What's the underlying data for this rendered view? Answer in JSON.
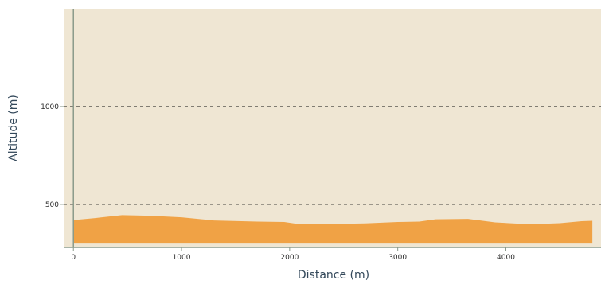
{
  "chart_data": {
    "type": "area",
    "title": "",
    "xlabel": "Distance (m)",
    "ylabel": "Altitude (m)",
    "xlim": [
      -90,
      4880
    ],
    "ylim": [
      280,
      1500
    ],
    "x_ticks": [
      0,
      1000,
      2000,
      3000,
      4000
    ],
    "y_ticks": [
      500,
      1000
    ],
    "grid": "horizontal dashed at 500 and 1000",
    "baseline": 300,
    "series": [
      {
        "x": [
          0,
          200,
          450,
          700,
          1000,
          1300,
          1700,
          1950,
          2100,
          2400,
          2700,
          3000,
          3200,
          3350,
          3650,
          3900,
          4100,
          4300,
          4500,
          4700,
          4800
        ],
        "y": [
          420,
          430,
          445,
          442,
          434,
          418,
          412,
          410,
          398,
          400,
          403,
          410,
          412,
          424,
          426,
          408,
          402,
          400,
          404,
          414,
          416
        ]
      }
    ],
    "colors": {
      "plot_background": "#efe6d3",
      "area_fill": "#f0a245",
      "axis_line": "#8a9a8a",
      "grid_line": "#111111",
      "axis_title": "#33485a"
    }
  }
}
